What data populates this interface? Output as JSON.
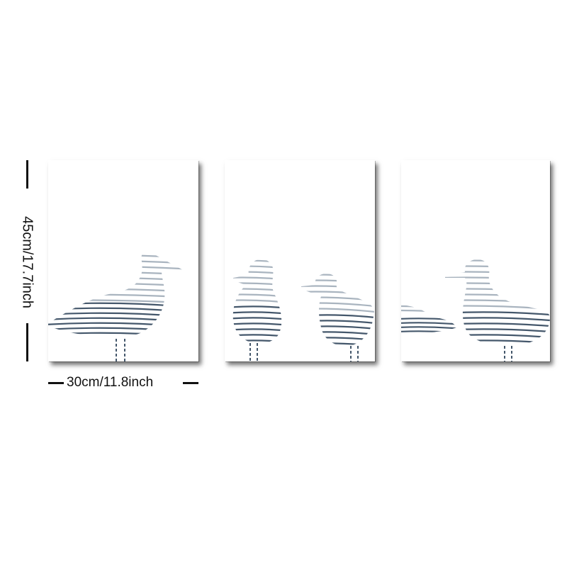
{
  "dimensions": {
    "height_label": "45cm/17.7inch",
    "width_label": "30cm/11.8inch"
  },
  "panels": [
    {
      "subject": "seagull"
    },
    {
      "subject": "two seagulls"
    },
    {
      "subject": "seagull"
    }
  ],
  "colors": {
    "dark_stripe": "#44576b",
    "light_stripe": "#a9b4bf",
    "canvas": "#ffffff",
    "shadow": "#000000"
  }
}
